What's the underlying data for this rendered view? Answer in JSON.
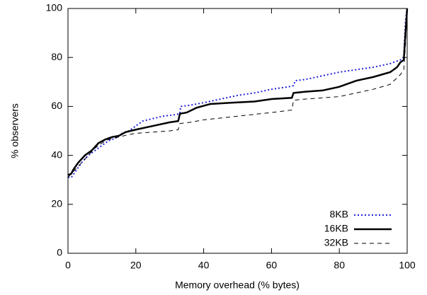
{
  "chart_data": {
    "type": "line",
    "x_label": "Memory overhead (% bytes)",
    "y_label": "% observers",
    "xlim": [
      0,
      100
    ],
    "xticks": [
      0,
      20,
      40,
      60,
      80,
      100
    ],
    "ylim": [
      0,
      100
    ],
    "yticks": [
      0,
      20,
      40,
      60,
      80,
      100
    ],
    "legend": "bottom-right",
    "series": [
      {
        "name": "8KB",
        "color": "#2020dd",
        "style": "dotted",
        "x": [
          0,
          1,
          2,
          4,
          6,
          8,
          10,
          12,
          14,
          16,
          18,
          20,
          22,
          25,
          28,
          31,
          33,
          33.2,
          36,
          40,
          45,
          50,
          55,
          60,
          65,
          66.5,
          67,
          70,
          75,
          80,
          85,
          90,
          95,
          98,
          99,
          99.5,
          100
        ],
        "values": [
          31,
          31,
          33,
          37,
          40,
          42,
          44,
          46,
          47,
          49,
          50,
          52,
          54,
          55,
          56,
          56.5,
          57,
          60,
          60.5,
          61.5,
          63,
          64.5,
          65.5,
          67,
          68,
          68.5,
          70.5,
          71,
          72.5,
          74,
          75,
          76,
          77.5,
          79,
          80,
          95,
          100
        ]
      },
      {
        "name": "16KB",
        "color": "#000000",
        "style": "solid",
        "x": [
          0,
          1,
          1.5,
          3,
          5,
          7,
          9,
          11,
          13,
          15,
          17,
          20,
          25,
          30,
          32.5,
          33,
          35,
          38,
          42,
          48,
          55,
          60,
          66,
          66.5,
          70,
          75,
          80,
          85,
          90,
          95,
          97,
          98,
          99,
          99.5,
          100
        ],
        "values": [
          32,
          32.5,
          34,
          37,
          40,
          42,
          45,
          46.5,
          47.5,
          48,
          49.5,
          50.5,
          52,
          53.5,
          54,
          57,
          57.5,
          59.5,
          61,
          61.5,
          62,
          63,
          63.5,
          65.5,
          66,
          66.5,
          68,
          70.5,
          72,
          74,
          76,
          78,
          79,
          90,
          100
        ]
      },
      {
        "name": "32KB",
        "color": "#000000",
        "style": "dashed",
        "x": [
          0,
          2,
          4,
          6,
          8,
          10,
          12,
          15,
          18,
          20,
          25,
          30,
          32.5,
          33,
          36,
          40,
          50,
          60,
          66,
          66.5,
          70,
          80,
          85,
          90,
          95,
          98,
          99,
          99.5,
          100
        ],
        "values": [
          31,
          34,
          37,
          40,
          43,
          45,
          46.5,
          47.5,
          48.5,
          49,
          49.5,
          50,
          50.5,
          53,
          53.5,
          54.5,
          56,
          57.5,
          58.5,
          62.5,
          63,
          64,
          65.5,
          67,
          69,
          73,
          75,
          85,
          100
        ]
      }
    ]
  }
}
